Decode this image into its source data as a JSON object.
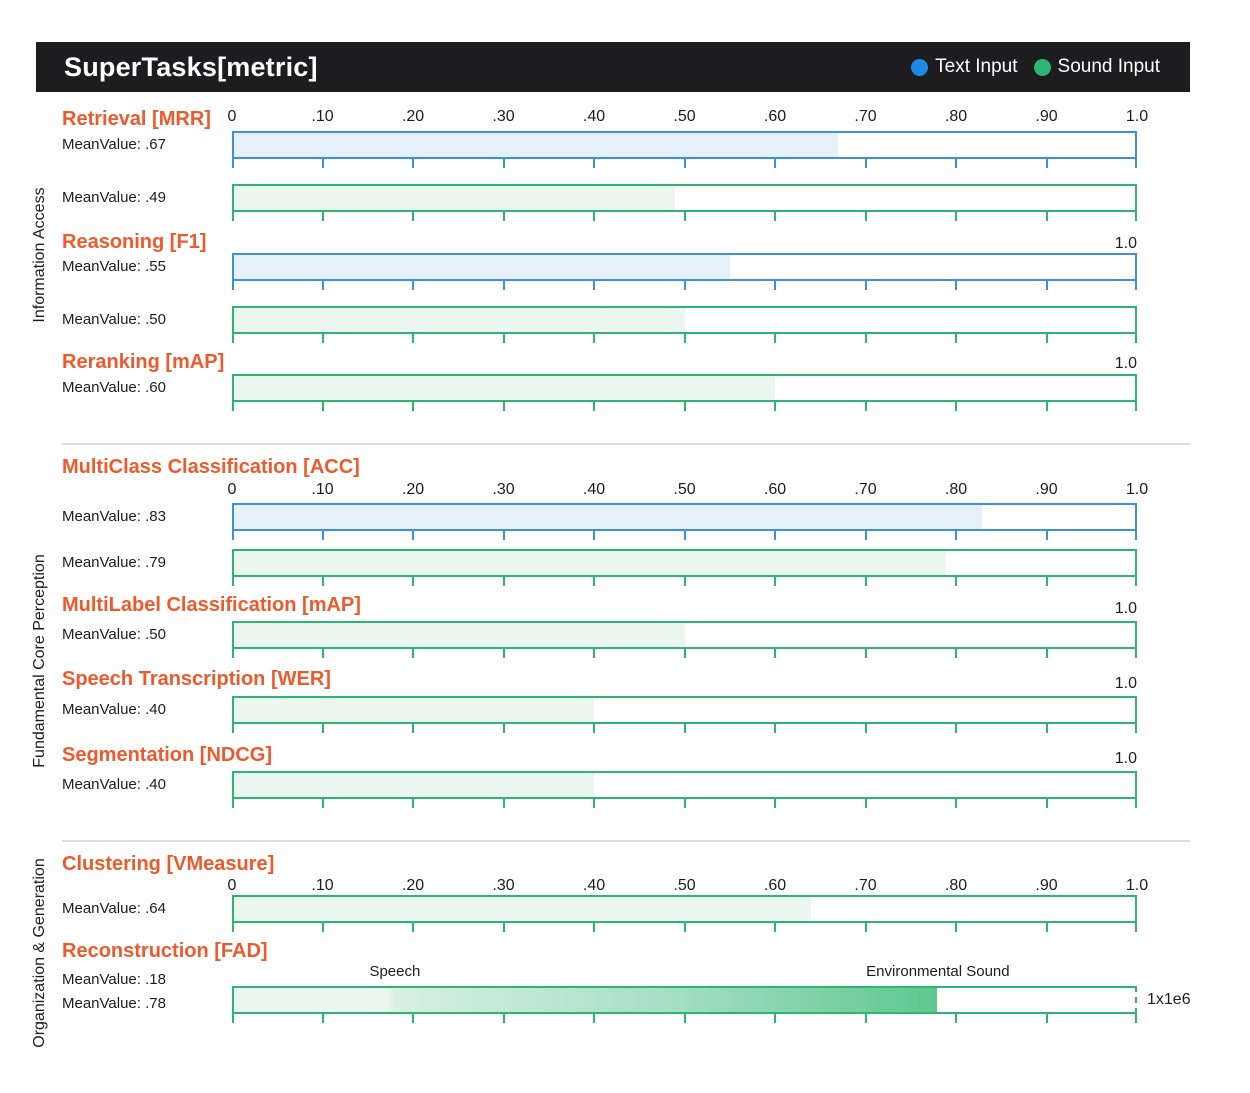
{
  "header": {
    "title": "SuperTasks[metric]",
    "legend": [
      {
        "label": "Text Input",
        "color": "#1e88e5"
      },
      {
        "label": "Sound Input",
        "color": "#2db673"
      }
    ]
  },
  "colors": {
    "header_bg": "#1d1d1f",
    "title_accent": "#ee5a2c",
    "text_input_border": "#3f8fdf",
    "text_input_fill": "#e6f0fa",
    "sound_input_border": "#2eb573",
    "sound_input_fill": "#eaf6ef",
    "gradient_mid": "#a9e0c5",
    "gradient_deep": "#5ec78f",
    "divider": "#dcdcdc",
    "text_dark": "#1d1d1f"
  },
  "axis": {
    "tick_labels": [
      "0",
      ".10",
      ".20",
      ".30",
      ".40",
      ".50",
      ".60",
      ".70",
      ".80",
      ".90",
      "1.0"
    ],
    "max_label": "1.0",
    "range": [
      0,
      1.0
    ]
  },
  "chart_data": {
    "type": "bar",
    "title": "SuperTasks[metric]",
    "series_legend": [
      "Text Input",
      "Sound Input"
    ],
    "axis_range": [
      0,
      1.0
    ],
    "groups": [
      {
        "label": "Information Access",
        "tasks": [
          {
            "title": "Retrieval [MRR]",
            "axis": "full",
            "bars": [
              {
                "series": "Text Input",
                "mean_label": "MeanValue: .67",
                "value": 0.67
              },
              {
                "series": "Sound Input",
                "mean_label": "MeanValue: .49",
                "value": 0.49
              }
            ]
          },
          {
            "title": "Reasoning [F1]",
            "axis": "max",
            "bars": [
              {
                "series": "Text Input",
                "mean_label": "MeanValue: .55",
                "value": 0.55
              },
              {
                "series": "Sound Input",
                "mean_label": "MeanValue: .50",
                "value": 0.5
              }
            ]
          },
          {
            "title": "Reranking [mAP]",
            "axis": "max",
            "bars": [
              {
                "series": "Sound Input",
                "mean_label": "MeanValue: .60",
                "value": 0.6
              }
            ]
          }
        ]
      },
      {
        "label": "Fundamental Core Perception",
        "tasks": [
          {
            "title": "MultiClass Classification [ACC]",
            "axis": "full",
            "bars": [
              {
                "series": "Text Input",
                "mean_label": "MeanValue: .83",
                "value": 0.83
              },
              {
                "series": "Sound Input",
                "mean_label": "MeanValue: .79",
                "value": 0.79
              }
            ]
          },
          {
            "title": "MultiLabel Classification [mAP]",
            "axis": "max",
            "bars": [
              {
                "series": "Sound Input",
                "mean_label": "MeanValue: .50",
                "value": 0.5
              }
            ]
          },
          {
            "title": "Speech Transcription [WER]",
            "axis": "max",
            "bars": [
              {
                "series": "Sound Input",
                "mean_label": "MeanValue: .40",
                "value": 0.4
              }
            ]
          },
          {
            "title": "Segmentation [NDCG]",
            "axis": "max",
            "bars": [
              {
                "series": "Sound Input",
                "mean_label": "MeanValue: .40",
                "value": 0.4
              }
            ]
          }
        ]
      },
      {
        "label": "Organization & Generation",
        "tasks": [
          {
            "title": "Clustering [VMeasure]",
            "axis": "full",
            "bars": [
              {
                "series": "Sound Input",
                "mean_label": "MeanValue: .64",
                "value": 0.64
              }
            ]
          },
          {
            "title": "Reconstruction [FAD]",
            "axis": "none",
            "scale_label": "1x1e6",
            "bars": [
              {
                "series": "Sound Input",
                "mean_labels": [
                  "MeanValue: .18",
                  "MeanValue: .78"
                ],
                "value": 0.78,
                "gradient": true,
                "gradient_step_at": 0.18,
                "dashed_right_edge": true,
                "annotations": [
                  {
                    "text": "Speech",
                    "at": 0.18
                  },
                  {
                    "text": "Environmental Sound",
                    "at": 0.78
                  }
                ]
              }
            ]
          }
        ]
      }
    ]
  }
}
